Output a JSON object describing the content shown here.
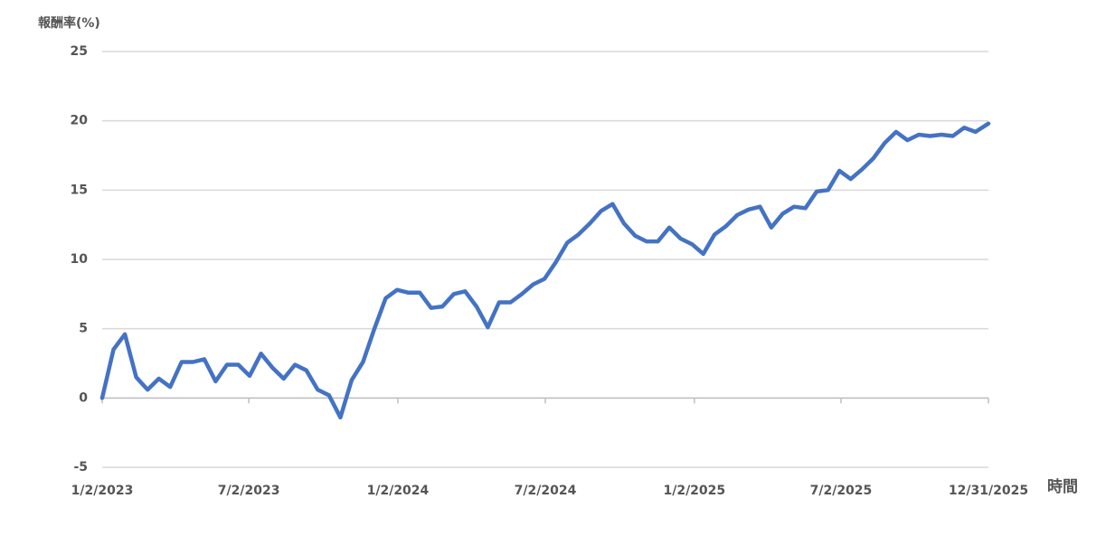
{
  "chart_data": {
    "type": "line",
    "y_axis_label": "報酬率(%)",
    "x_axis_label": "時間",
    "x": [
      "2023-01-02",
      "2023-01-16",
      "2023-01-30",
      "2023-02-13",
      "2023-02-27",
      "2023-03-13",
      "2023-03-27",
      "2023-04-10",
      "2023-04-24",
      "2023-05-08",
      "2023-05-22",
      "2023-06-05",
      "2023-06-19",
      "2023-07-03",
      "2023-07-17",
      "2023-07-31",
      "2023-08-14",
      "2023-08-28",
      "2023-09-11",
      "2023-09-25",
      "2023-10-09",
      "2023-10-23",
      "2023-11-06",
      "2023-11-20",
      "2023-12-04",
      "2023-12-18",
      "2024-01-01",
      "2024-01-15",
      "2024-01-29",
      "2024-02-12",
      "2024-02-26",
      "2024-03-11",
      "2024-03-25",
      "2024-04-08",
      "2024-04-22",
      "2024-05-06",
      "2024-05-20",
      "2024-06-03",
      "2024-06-17",
      "2024-07-01",
      "2024-07-15",
      "2024-07-29",
      "2024-08-12",
      "2024-08-26",
      "2024-09-09",
      "2024-09-23",
      "2024-10-07",
      "2024-10-21",
      "2024-11-04",
      "2024-11-18",
      "2024-12-02",
      "2024-12-16",
      "2024-12-30",
      "2025-01-13",
      "2025-01-27",
      "2025-02-10",
      "2025-02-24",
      "2025-03-10",
      "2025-03-24",
      "2025-04-07",
      "2025-04-21",
      "2025-05-05",
      "2025-05-19",
      "2025-06-02",
      "2025-06-16",
      "2025-06-30",
      "2025-07-14",
      "2025-07-28",
      "2025-08-11",
      "2025-08-25",
      "2025-09-08",
      "2025-09-22",
      "2025-10-06",
      "2025-10-20",
      "2025-11-03",
      "2025-11-17",
      "2025-12-01",
      "2025-12-15",
      "2025-12-31"
    ],
    "series": [
      {
        "name": "報酬率",
        "color": "#4472c4",
        "values": [
          0,
          3.5,
          4.6,
          1.5,
          0.6,
          1.4,
          0.8,
          2.6,
          2.6,
          2.8,
          1.2,
          2.4,
          2.4,
          1.6,
          3.2,
          2.2,
          1.4,
          2.4,
          2,
          0.6,
          0.2,
          -1.4,
          1.3,
          2.6,
          5,
          7.2,
          7.8,
          7.6,
          7.6,
          6.5,
          6.6,
          7.5,
          7.7,
          6.6,
          5.1,
          6.9,
          6.9,
          7.5,
          8.2,
          8.6,
          9.8,
          11.2,
          11.8,
          12.6,
          13.5,
          14,
          12.6,
          11.7,
          11.3,
          11.3,
          12.3,
          11.5,
          11.1,
          10.4,
          11.8,
          12.4,
          13.2,
          13.6,
          13.8,
          12.3,
          13.3,
          13.8,
          13.7,
          14.9,
          15,
          16.4,
          15.8,
          16.5,
          17.3,
          18.4,
          19.2,
          18.6,
          19,
          18.9,
          19,
          18.9,
          19.5,
          19.2,
          19.8
        ]
      }
    ],
    "xlim": [
      "2023-01-02",
      "2025-12-31"
    ],
    "xticks": [
      {
        "value": "2023-01-02",
        "label": "1/2/2023"
      },
      {
        "value": "2023-07-02",
        "label": "7/2/2023"
      },
      {
        "value": "2024-01-02",
        "label": "1/2/2024"
      },
      {
        "value": "2024-07-02",
        "label": "7/2/2024"
      },
      {
        "value": "2025-01-02",
        "label": "1/2/2025"
      },
      {
        "value": "2025-07-02",
        "label": "7/2/2025"
      },
      {
        "value": "2025-12-31",
        "label": "12/31/2025"
      }
    ],
    "ylim": [
      -5,
      25
    ],
    "yticks": [
      -5,
      0,
      5,
      10,
      15,
      20,
      25
    ],
    "grid": true
  }
}
